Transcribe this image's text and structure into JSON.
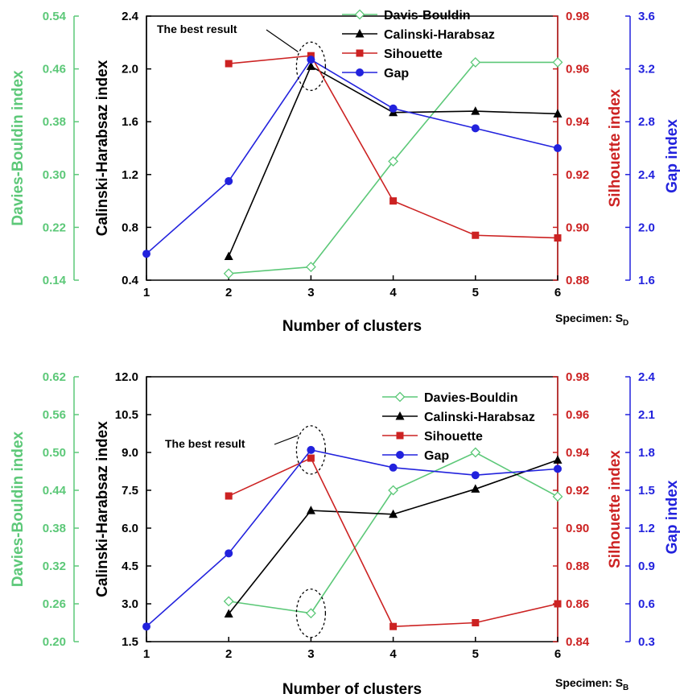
{
  "colors": {
    "davies": "#5CC878",
    "calinski": "#000000",
    "silhouette": "#CC2222",
    "gap": "#2222DD",
    "frame": "#000000"
  },
  "chart_data": [
    {
      "type": "line",
      "specimen_prefix": "Specimen: S",
      "specimen_sub": "D",
      "xlabel": "Number of clusters",
      "x_ticks": [
        "1",
        "2",
        "3",
        "4",
        "5",
        "6"
      ],
      "xlim": [
        1,
        6
      ],
      "annotation": "The best result",
      "highlight": [
        {
          "x": 3,
          "axis": "calinski",
          "y": 2.02
        }
      ],
      "axes": {
        "davies": {
          "label": "Davies-Bouldin index",
          "lim": [
            0.14,
            0.54
          ],
          "ticks": [
            "0.14",
            "0.22",
            "0.30",
            "0.38",
            "0.46",
            "0.54"
          ]
        },
        "calinski": {
          "label": "Calinski-Harabsaz index",
          "lim": [
            0.4,
            2.4
          ],
          "ticks": [
            "0.4",
            "0.8",
            "1.2",
            "1.6",
            "2.0",
            "2.4"
          ]
        },
        "silhouette": {
          "label": "Silhouette index",
          "lim": [
            0.88,
            0.98
          ],
          "ticks": [
            "0.88",
            "0.90",
            "0.92",
            "0.94",
            "0.96",
            "0.98"
          ]
        },
        "gap": {
          "label": "Gap index",
          "lim": [
            1.6,
            3.6
          ],
          "ticks": [
            "1.6",
            "2.0",
            "2.4",
            "2.8",
            "3.2",
            "3.6"
          ]
        }
      },
      "series": [
        {
          "name": "Davis-Bouldin",
          "axis": "davies",
          "marker": "diamond-open",
          "x": [
            2,
            3,
            4,
            5,
            6
          ],
          "y": [
            0.15,
            0.16,
            0.32,
            0.47,
            0.47
          ]
        },
        {
          "name": "Calinski-Harabsaz",
          "axis": "calinski",
          "marker": "triangle",
          "x": [
            2,
            3,
            4,
            5,
            6
          ],
          "y": [
            0.58,
            2.02,
            1.67,
            1.68,
            1.66
          ]
        },
        {
          "name": "Sihouette",
          "axis": "silhouette",
          "marker": "square",
          "x": [
            2,
            3,
            4,
            5,
            6
          ],
          "y": [
            0.962,
            0.965,
            0.91,
            0.897,
            0.896
          ]
        },
        {
          "name": "Gap",
          "axis": "gap",
          "marker": "circle",
          "x": [
            1,
            2,
            3,
            4,
            5,
            6
          ],
          "y": [
            1.8,
            2.35,
            3.27,
            2.9,
            2.75,
            2.6
          ]
        }
      ]
    },
    {
      "type": "line",
      "specimen_prefix": "Specimen: S",
      "specimen_sub": "B",
      "xlabel": "Number of clusters",
      "x_ticks": [
        "1",
        "2",
        "3",
        "4",
        "5",
        "6"
      ],
      "xlim": [
        1,
        6
      ],
      "annotation": "The best result",
      "highlight": [
        {
          "x": 3,
          "axis": "gap",
          "y": 1.82
        },
        {
          "x": 3,
          "axis": "davies",
          "y": 0.245
        }
      ],
      "axes": {
        "davies": {
          "label": "Davies-Bouldin index",
          "lim": [
            0.2,
            0.62
          ],
          "ticks": [
            "0.20",
            "0.26",
            "0.32",
            "0.38",
            "0.44",
            "0.50",
            "0.56",
            "0.62"
          ]
        },
        "calinski": {
          "label": "Calinski-Harabsaz index",
          "lim": [
            1.5,
            12.0
          ],
          "ticks": [
            "1.5",
            "3.0",
            "4.5",
            "6.0",
            "7.5",
            "9.0",
            "10.5",
            "12.0"
          ]
        },
        "silhouette": {
          "label": "Silhouette index",
          "lim": [
            0.84,
            0.98
          ],
          "ticks": [
            "0.84",
            "0.86",
            "0.88",
            "0.90",
            "0.92",
            "0.94",
            "0.96",
            "0.98"
          ]
        },
        "gap": {
          "label": "Gap index",
          "lim": [
            0.3,
            2.4
          ],
          "ticks": [
            "0.3",
            "0.6",
            "0.9",
            "1.2",
            "1.5",
            "1.8",
            "2.1",
            "2.4"
          ]
        }
      },
      "series": [
        {
          "name": "Davies-Bouldin",
          "axis": "davies",
          "marker": "diamond-open",
          "x": [
            2,
            3,
            4,
            5,
            6
          ],
          "y": [
            0.264,
            0.245,
            0.44,
            0.5,
            0.43
          ]
        },
        {
          "name": "Calinski-Harabsaz",
          "axis": "calinski",
          "marker": "triangle",
          "x": [
            2,
            3,
            4,
            5,
            6
          ],
          "y": [
            2.6,
            6.7,
            6.55,
            7.55,
            8.7
          ]
        },
        {
          "name": "Sihouette",
          "axis": "silhouette",
          "marker": "square",
          "x": [
            2,
            3,
            4,
            5,
            6
          ],
          "y": [
            0.917,
            0.937,
            0.848,
            0.85,
            0.86
          ]
        },
        {
          "name": "Gap",
          "axis": "gap",
          "marker": "circle",
          "x": [
            1,
            2,
            3,
            4,
            5,
            6
          ],
          "y": [
            0.42,
            1.0,
            1.82,
            1.68,
            1.62,
            1.67
          ]
        }
      ]
    }
  ]
}
